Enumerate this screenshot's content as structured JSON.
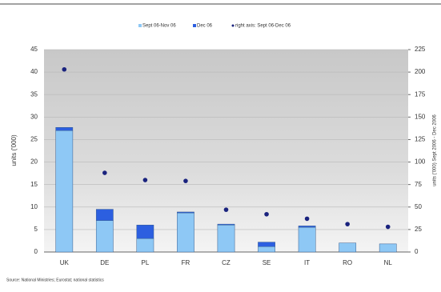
{
  "chart_data": {
    "type": "bar",
    "legend": "top",
    "ylabel": "units ('000)",
    "y2label": "units ('000) Sept 2006 - Dec 2006",
    "source": "Source: National Ministries; Eurostat; national statistics",
    "categories": [
      "UK",
      "DE",
      "PL",
      "FR",
      "CZ",
      "SE",
      "IT",
      "RO",
      "NL"
    ],
    "series": [
      {
        "name": "Sept 06-Nov 06",
        "color": "#8ec8f5",
        "values": [
          27,
          7,
          3,
          8.7,
          6,
          1.2,
          5.5,
          2,
          1.8
        ]
      },
      {
        "name": "Dec 06",
        "color": "#2c5fe0",
        "values": [
          0.7,
          2.5,
          3,
          0.2,
          0.2,
          1,
          0.3,
          0,
          0
        ]
      },
      {
        "name": "right axis: Sept 06-Dec 06",
        "color": "#1a237e",
        "type": "scatter",
        "axis": "y2",
        "values": [
          203,
          88,
          80,
          79,
          47,
          42,
          37,
          31,
          28
        ]
      }
    ],
    "ylim": [
      0,
      45
    ],
    "yticks": [
      0,
      5,
      10,
      15,
      20,
      25,
      30,
      35,
      40,
      45
    ],
    "y2lim": [
      0,
      225
    ],
    "y2ticks": [
      0,
      25,
      50,
      75,
      100,
      125,
      150,
      175,
      200,
      225
    ]
  }
}
